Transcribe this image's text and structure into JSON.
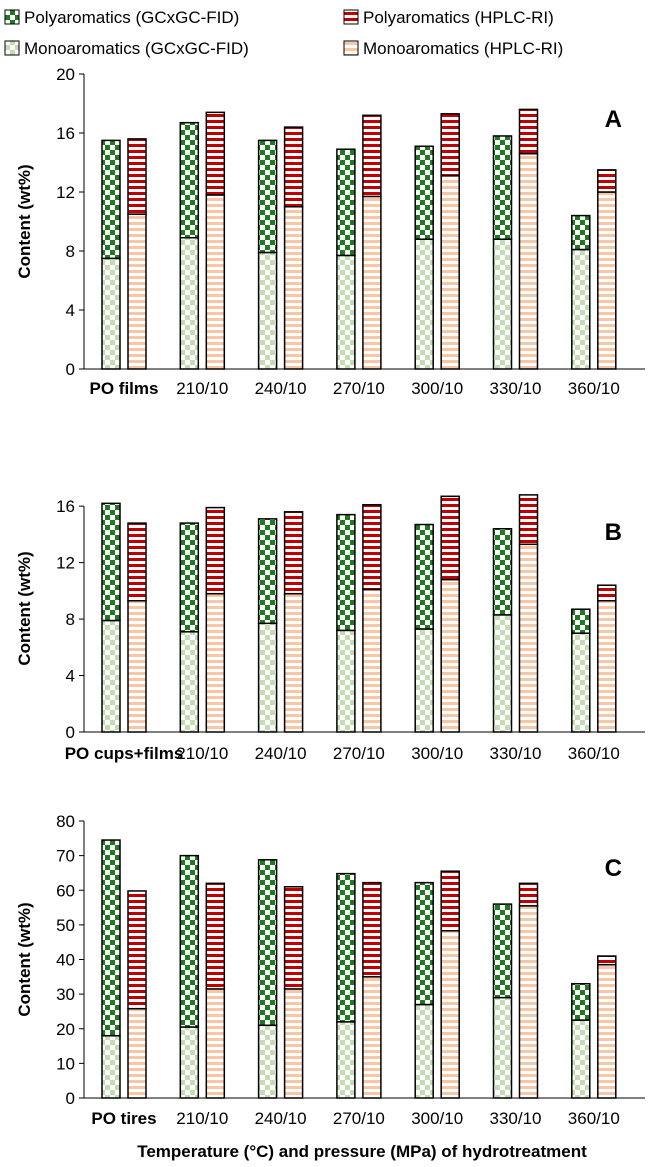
{
  "chart_data": {
    "type": "bar",
    "stacked": true,
    "legend_position": "top",
    "legend": [
      {
        "key": "poly_gc",
        "label": "Polyaromatics (GCxGC-FID)"
      },
      {
        "key": "poly_hplc",
        "label": "Polyaromatics (HPLC-RI)"
      },
      {
        "key": "mono_gc",
        "label": "Monoaromatics (GCxGC-FID)"
      },
      {
        "key": "mono_hplc",
        "label": "Monoaromatics (HPLC-RI)"
      }
    ],
    "colors": {
      "poly_gc": "#1f7a1f",
      "poly_hplc": "#c00000",
      "mono_gc": "#c5dbb3",
      "mono_hplc": "#f8c5a5",
      "outline": "#000000"
    },
    "xlabel": "Temperature (°C) and pressure (MPa) of hydrotreatment",
    "panels": [
      {
        "letter": "A",
        "ylabel": "Content (wt%)",
        "ylim": [
          0,
          20
        ],
        "yticks": [
          0,
          4,
          8,
          12,
          16,
          20
        ],
        "categories": [
          "PO films",
          "210/10",
          "240/10",
          "270/10",
          "300/10",
          "330/10",
          "360/10"
        ],
        "gc_mono": [
          7.5,
          8.9,
          7.9,
          7.7,
          8.8,
          8.8,
          8.1
        ],
        "gc_total": [
          15.5,
          16.7,
          15.5,
          14.9,
          15.1,
          15.8,
          10.4
        ],
        "hplc_mono": [
          10.5,
          11.8,
          11.0,
          11.7,
          13.1,
          14.6,
          12.0
        ],
        "hplc_total": [
          15.6,
          17.4,
          16.4,
          17.2,
          17.3,
          17.6,
          13.5
        ]
      },
      {
        "letter": "B",
        "ylabel": "Content (wt%)",
        "ylim": [
          0,
          17.5
        ],
        "yticks": [
          0,
          4,
          8,
          12,
          16
        ],
        "categories": [
          "PO cups+films",
          "210/10",
          "240/10",
          "270/10",
          "300/10",
          "330/10",
          "360/10"
        ],
        "gc_mono": [
          7.9,
          7.1,
          7.7,
          7.2,
          7.3,
          8.3,
          7.0
        ],
        "gc_total": [
          16.2,
          14.8,
          15.1,
          15.4,
          14.7,
          14.4,
          8.7
        ],
        "hplc_mono": [
          9.3,
          9.8,
          9.8,
          10.1,
          10.8,
          13.3,
          9.3
        ],
        "hplc_total": [
          14.8,
          15.9,
          15.6,
          16.1,
          16.7,
          16.8,
          10.4
        ]
      },
      {
        "letter": "C",
        "ylabel": "Content (wt%)",
        "ylim": [
          0,
          80
        ],
        "yticks": [
          0,
          10,
          20,
          30,
          40,
          50,
          60,
          70,
          80
        ],
        "categories": [
          "PO tires",
          "210/10",
          "240/10",
          "270/10",
          "300/10",
          "330/10",
          "360/10"
        ],
        "gc_mono": [
          18.0,
          20.5,
          21.0,
          22.0,
          27.0,
          29.0,
          22.5
        ],
        "gc_total": [
          74.5,
          70.0,
          68.8,
          64.8,
          62.2,
          56.0,
          33.0
        ],
        "hplc_mono": [
          25.8,
          31.5,
          31.5,
          35.0,
          48.3,
          55.5,
          38.5
        ],
        "hplc_total": [
          59.8,
          62.0,
          61.0,
          62.2,
          65.5,
          62.0,
          41.0
        ]
      }
    ]
  }
}
